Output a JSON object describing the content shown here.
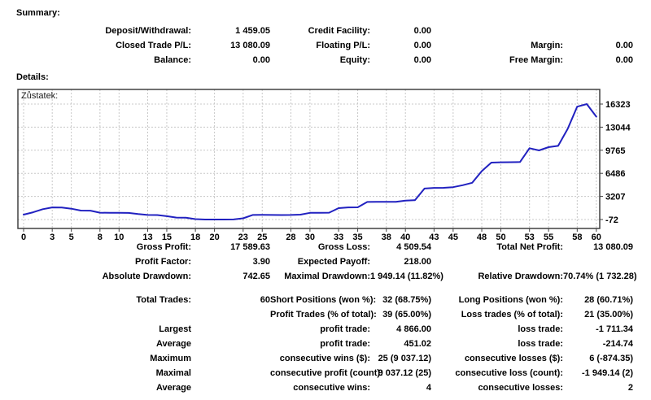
{
  "summary": {
    "title": "Summary:",
    "rows": [
      [
        "Deposit/Withdrawal:",
        "1 459.05",
        "Credit Facility:",
        "0.00",
        "",
        ""
      ],
      [
        "Closed Trade P/L:",
        "13 080.09",
        "Floating P/L:",
        "0.00",
        "Margin:",
        "0.00"
      ],
      [
        "Balance:",
        "0.00",
        "Equity:",
        "0.00",
        "Free Margin:",
        "0.00"
      ]
    ]
  },
  "details": {
    "title": "Details:"
  },
  "chart_data": {
    "type": "line",
    "legend": "Zůstatek:",
    "xlabel": "",
    "ylabel": "",
    "x": [
      0,
      1,
      2,
      3,
      4,
      5,
      6,
      7,
      8,
      9,
      10,
      11,
      12,
      13,
      14,
      15,
      16,
      17,
      18,
      19,
      20,
      21,
      22,
      23,
      24,
      25,
      26,
      27,
      28,
      29,
      30,
      31,
      32,
      33,
      34,
      35,
      36,
      37,
      38,
      39,
      40,
      41,
      42,
      43,
      44,
      45,
      46,
      47,
      48,
      49,
      50,
      51,
      52,
      53,
      54,
      55,
      56,
      57,
      58,
      59,
      60
    ],
    "series": [
      {
        "name": "Zůstatek",
        "color": "#2121c0",
        "values": [
          615,
          950,
          1400,
          1650,
          1620,
          1460,
          1200,
          1190,
          900,
          880,
          870,
          860,
          700,
          580,
          560,
          400,
          200,
          190,
          -20,
          -72,
          -70,
          -72,
          -60,
          100,
          580,
          590,
          570,
          560,
          580,
          620,
          880,
          880,
          900,
          1540,
          1650,
          1655,
          2425,
          2430,
          2440,
          2450,
          2615,
          2680,
          4330,
          4420,
          4430,
          4520,
          4800,
          5150,
          6800,
          8010,
          8060,
          8070,
          8090,
          10050,
          9740,
          10200,
          10390,
          12800,
          15950,
          16323,
          14539
        ]
      }
    ],
    "x_ticks": [
      0,
      3,
      5,
      8,
      10,
      13,
      15,
      18,
      20,
      23,
      25,
      28,
      30,
      33,
      35,
      38,
      40,
      43,
      45,
      48,
      50,
      53,
      55,
      58,
      60
    ],
    "y_ticks": [
      -72,
      3207,
      6486,
      9765,
      13044,
      16323
    ],
    "ylim": [
      -72,
      16323
    ],
    "grid": true,
    "legend_position": "top-left",
    "colors": {
      "line": "#2121c0",
      "grid": "#c8c8c8",
      "border": "#404040",
      "background": "#ffffff"
    }
  },
  "stats": {
    "group1": [
      [
        "Gross Profit:",
        "17 589.63",
        "Gross Loss:",
        "4 509.54",
        "Total Net Profit:",
        "13 080.09"
      ],
      [
        "Profit Factor:",
        "3.90",
        "Expected Payoff:",
        "218.00",
        "",
        ""
      ],
      [
        "Absolute Drawdown:",
        "742.65",
        "Maximal Drawdown:",
        "1 949.14 (11.82%)",
        "Relative Drawdown:",
        "70.74% (1 732.28)"
      ]
    ],
    "group2": [
      [
        "Total Trades:",
        "60",
        "Short Positions (won %):",
        "32 (68.75%)",
        "Long Positions (won %):",
        "28 (60.71%)"
      ],
      [
        "",
        "",
        "Profit Trades (% of total):",
        "39 (65.00%)",
        "Loss trades (% of total):",
        "21 (35.00%)"
      ],
      [
        "Largest",
        "",
        "profit trade:",
        "4 866.00",
        "loss trade:",
        "-1 711.34"
      ],
      [
        "Average",
        "",
        "profit trade:",
        "451.02",
        "loss trade:",
        "-214.74"
      ],
      [
        "Maximum",
        "",
        "consecutive wins ($):",
        "25 (9 037.12)",
        "consecutive losses ($):",
        "6 (-874.35)"
      ],
      [
        "Maximal",
        "",
        "consecutive profit (count):",
        "9 037.12 (25)",
        "consecutive loss (count):",
        "-1 949.14 (2)"
      ],
      [
        "Average",
        "",
        "consecutive wins:",
        "4",
        "consecutive losses:",
        "2"
      ]
    ]
  }
}
